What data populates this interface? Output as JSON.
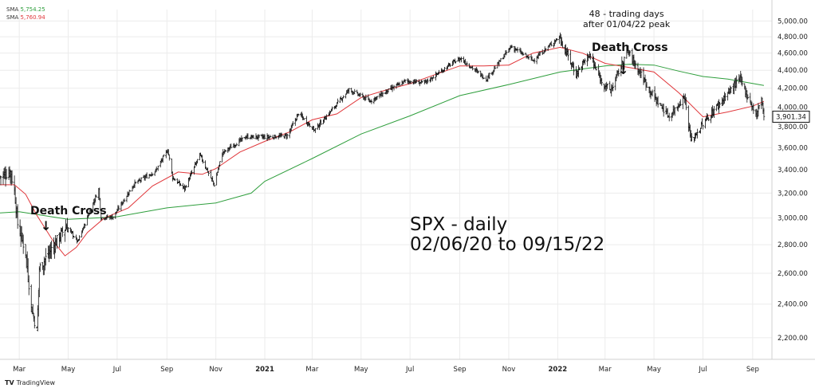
{
  "legend": {
    "line1_label": "SMA",
    "line1_value": "5,754.25",
    "line2_label": "SMA",
    "line2_value": "5,760.94"
  },
  "footer": {
    "brand": "TradingView"
  },
  "annotations": {
    "title_line1": "SPX - daily",
    "title_line2": "02/06/20 to 09/15/22",
    "death_cross_1": "Death Cross",
    "death_cross_2": "Death Cross",
    "note_line1": "48 - trading days",
    "note_line2": "after 01/04/22 peak",
    "arrow": "↓"
  },
  "colors": {
    "price": "#111111",
    "sma_short": "#e0363a",
    "sma_long": "#2e9e3c",
    "grid": "#ececec",
    "last_price_box": "#111111"
  },
  "chart_data": {
    "type": "line",
    "subtype": "ohlc-bars",
    "y_scale": "log",
    "ylim": [
      2080,
      5150
    ],
    "y_ticks": [
      "2,200.00",
      "2,400.00",
      "2,600.00",
      "2,800.00",
      "3,000.00",
      "3,200.00",
      "3,400.00",
      "3,600.00",
      "3,800.00",
      "4,000.00",
      "4,200.00",
      "4,400.00",
      "4,600.00",
      "4,800.00",
      "5,000.00"
    ],
    "x_ticks": [
      "Mar",
      "May",
      "Jul",
      "Sep",
      "Nov",
      "2021",
      "Mar",
      "May",
      "Jul",
      "Sep",
      "Nov",
      "2022",
      "Mar",
      "May",
      "Jul",
      "Sep"
    ],
    "x_tick_bold": [
      false,
      false,
      false,
      false,
      false,
      true,
      false,
      false,
      false,
      false,
      false,
      true,
      false,
      false,
      false,
      false
    ],
    "x_tick_dates": [
      "2020-03-01",
      "2020-05-01",
      "2020-07-01",
      "2020-09-01",
      "2020-11-01",
      "2021-01-01",
      "2021-03-01",
      "2021-05-01",
      "2021-07-01",
      "2021-09-01",
      "2021-11-01",
      "2022-01-01",
      "2022-03-01",
      "2022-05-01",
      "2022-07-01",
      "2022-09-01"
    ],
    "xlim": [
      "2020-02-06",
      "2022-09-25"
    ],
    "last_price": "3,901.34",
    "last_value": 3901.34,
    "grid": true,
    "series": [
      {
        "name": "SPX",
        "points": [
          [
            "2020-02-06",
            3340
          ],
          [
            "2020-02-19",
            3386
          ],
          [
            "2020-02-24",
            3225
          ],
          [
            "2020-02-28",
            2954
          ],
          [
            "2020-03-09",
            2746
          ],
          [
            "2020-03-16",
            2386
          ],
          [
            "2020-03-23",
            2237
          ],
          [
            "2020-03-26",
            2630
          ],
          [
            "2020-04-08",
            2750
          ],
          [
            "2020-04-29",
            2939
          ],
          [
            "2020-05-13",
            2820
          ],
          [
            "2020-05-27",
            3036
          ],
          [
            "2020-06-08",
            3232
          ],
          [
            "2020-06-11",
            3002
          ],
          [
            "2020-06-26",
            3009
          ],
          [
            "2020-07-22",
            3276
          ],
          [
            "2020-08-18",
            3390
          ],
          [
            "2020-09-02",
            3580
          ],
          [
            "2020-09-08",
            3332
          ],
          [
            "2020-09-23",
            3237
          ],
          [
            "2020-10-12",
            3534
          ],
          [
            "2020-10-30",
            3270
          ],
          [
            "2020-11-09",
            3550
          ],
          [
            "2020-12-08",
            3702
          ],
          [
            "2021-01-04",
            3700
          ],
          [
            "2021-01-29",
            3714
          ],
          [
            "2021-02-12",
            3934
          ],
          [
            "2021-03-04",
            3768
          ],
          [
            "2021-04-16",
            4185
          ],
          [
            "2021-05-12",
            4063
          ],
          [
            "2021-06-25",
            4280
          ],
          [
            "2021-07-19",
            4258
          ],
          [
            "2021-08-27",
            4510
          ],
          [
            "2021-09-02",
            4537
          ],
          [
            "2021-10-04",
            4300
          ],
          [
            "2021-11-04",
            4680
          ],
          [
            "2021-12-01",
            4513
          ],
          [
            "2022-01-03",
            4797
          ],
          [
            "2022-01-24",
            4356
          ],
          [
            "2022-02-09",
            4587
          ],
          [
            "2022-02-24",
            4288
          ],
          [
            "2022-03-08",
            4170
          ],
          [
            "2022-03-29",
            4631
          ],
          [
            "2022-04-29",
            4131
          ],
          [
            "2022-05-20",
            3901
          ],
          [
            "2022-06-08",
            4115
          ],
          [
            "2022-06-16",
            3666
          ],
          [
            "2022-07-08",
            3899
          ],
          [
            "2022-08-16",
            4305
          ],
          [
            "2022-09-06",
            3908
          ],
          [
            "2022-09-12",
            4110
          ],
          [
            "2022-09-15",
            3901
          ]
        ]
      },
      {
        "name": "SMA",
        "color_key": "sma_short",
        "points": [
          [
            "2020-02-06",
            3270
          ],
          [
            "2020-02-24",
            3270
          ],
          [
            "2020-03-09",
            3190
          ],
          [
            "2020-03-23",
            3020
          ],
          [
            "2020-04-13",
            2820
          ],
          [
            "2020-04-27",
            2720
          ],
          [
            "2020-05-11",
            2780
          ],
          [
            "2020-05-25",
            2890
          ],
          [
            "2020-06-15",
            3000
          ],
          [
            "2020-07-15",
            3080
          ],
          [
            "2020-08-14",
            3260
          ],
          [
            "2020-09-15",
            3380
          ],
          [
            "2020-10-15",
            3360
          ],
          [
            "2020-11-01",
            3410
          ],
          [
            "2020-12-01",
            3560
          ],
          [
            "2021-01-01",
            3660
          ],
          [
            "2021-02-01",
            3750
          ],
          [
            "2021-03-01",
            3870
          ],
          [
            "2021-04-01",
            3930
          ],
          [
            "2021-05-01",
            4100
          ],
          [
            "2021-06-01",
            4180
          ],
          [
            "2021-07-01",
            4250
          ],
          [
            "2021-08-01",
            4350
          ],
          [
            "2021-09-01",
            4450
          ],
          [
            "2021-10-01",
            4450
          ],
          [
            "2021-11-01",
            4460
          ],
          [
            "2021-12-01",
            4600
          ],
          [
            "2022-01-04",
            4670
          ],
          [
            "2022-02-01",
            4600
          ],
          [
            "2022-03-01",
            4480
          ],
          [
            "2022-04-01",
            4430
          ],
          [
            "2022-05-01",
            4380
          ],
          [
            "2022-06-01",
            4150
          ],
          [
            "2022-07-01",
            3900
          ],
          [
            "2022-08-01",
            3950
          ],
          [
            "2022-09-01",
            4010
          ],
          [
            "2022-09-15",
            4060
          ]
        ]
      },
      {
        "name": "SMA",
        "color_key": "sma_long",
        "points": [
          [
            "2020-02-06",
            3040
          ],
          [
            "2020-03-01",
            3050
          ],
          [
            "2020-05-01",
            2990
          ],
          [
            "2020-06-01",
            3000
          ],
          [
            "2020-07-01",
            3010
          ],
          [
            "2020-09-01",
            3080
          ],
          [
            "2020-11-01",
            3120
          ],
          [
            "2020-12-15",
            3200
          ],
          [
            "2021-01-01",
            3300
          ],
          [
            "2021-03-01",
            3500
          ],
          [
            "2021-05-01",
            3730
          ],
          [
            "2021-07-01",
            3910
          ],
          [
            "2021-09-01",
            4120
          ],
          [
            "2021-11-01",
            4240
          ],
          [
            "2022-01-04",
            4380
          ],
          [
            "2022-03-01",
            4450
          ],
          [
            "2022-04-01",
            4470
          ],
          [
            "2022-05-01",
            4460
          ],
          [
            "2022-06-01",
            4390
          ],
          [
            "2022-07-01",
            4330
          ],
          [
            "2022-08-01",
            4300
          ],
          [
            "2022-09-15",
            4230
          ]
        ]
      }
    ]
  }
}
